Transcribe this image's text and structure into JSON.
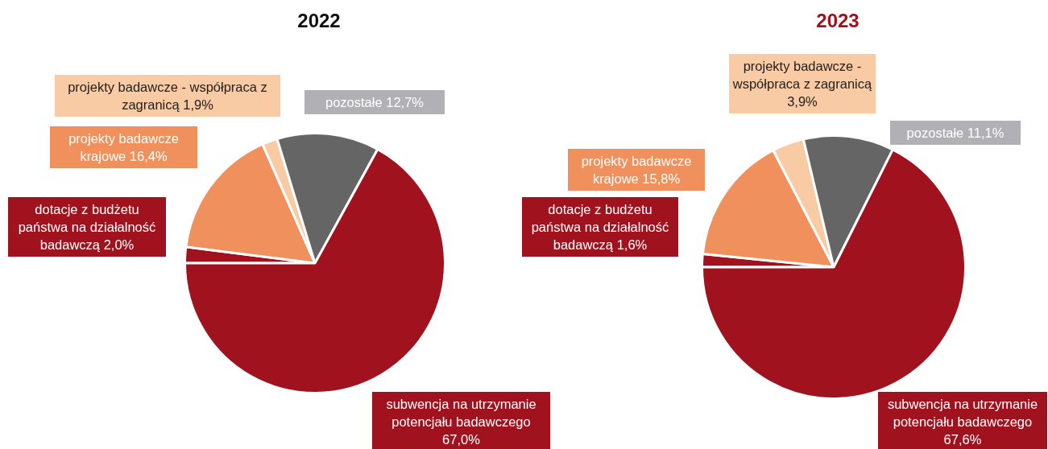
{
  "chart_data": [
    {
      "type": "pie",
      "title": "2022",
      "categories": [
        "dotacje z budżetu państwa na działalność badawczą",
        "projekty badawcze krajowe",
        "projekty badawcze - współpraca z zagranicą",
        "pozostałe",
        "subwencja na utrzymanie potencjału badawczego"
      ],
      "values": [
        2.0,
        16.4,
        1.9,
        12.7,
        67.0
      ],
      "colors": [
        "#a0121d",
        "#f0905c",
        "#f9cba5",
        "#656565",
        "#a0121d"
      ],
      "value_labels": [
        "2,0%",
        "16,4%",
        "1,9%",
        "12,7%",
        "67,0%"
      ],
      "legend": false
    },
    {
      "type": "pie",
      "title": "2023",
      "categories": [
        "dotacje z budżetu państwa na działalność badawczą",
        "projekty badawcze krajowe",
        "projekty badawcze - współpraca z zagranicą",
        "pozostałe",
        "subwencja na utrzymanie potencjału badawczego"
      ],
      "values": [
        1.6,
        15.8,
        3.9,
        11.1,
        67.6
      ],
      "colors": [
        "#a0121d",
        "#f0905c",
        "#f9cba5",
        "#656565",
        "#a0121d"
      ],
      "value_labels": [
        "1,6%",
        "15,8%",
        "3,9%",
        "11,1%",
        "67,6%"
      ],
      "legend": false
    }
  ]
}
